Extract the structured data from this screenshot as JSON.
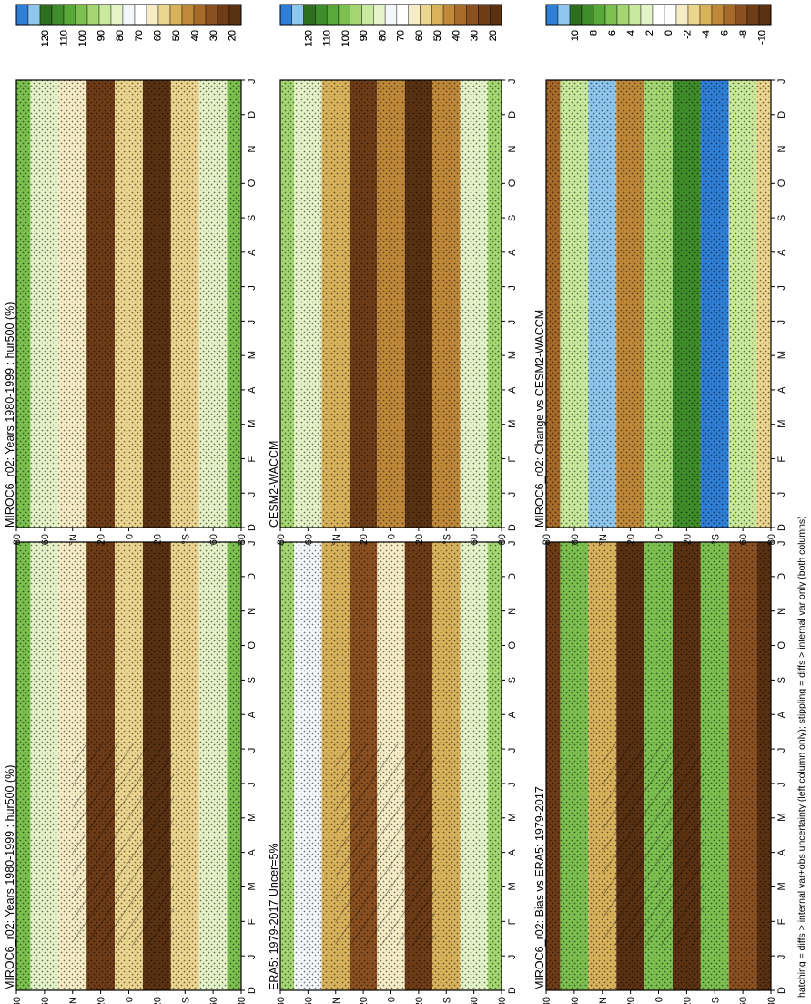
{
  "footnote": "hatching = diffs > internal var+obs uncertainty (left column only); stippling = diffs > internal var only (both columns)",
  "month_ticks": [
    "D",
    "J",
    "F",
    "M",
    "A",
    "M",
    "J",
    "J",
    "A",
    "S",
    "O",
    "N",
    "D",
    "J"
  ],
  "lat_ticks": [
    "80",
    "60",
    "°N",
    "20",
    "0",
    "20",
    "°S",
    "60",
    "80"
  ],
  "colorbars": {
    "abs": {
      "labels": [
        "120",
        "110",
        "100",
        "90",
        "80",
        "70",
        "60",
        "50",
        "40",
        "30",
        "20"
      ],
      "colors": [
        "#2f7fd6",
        "#8fc7ee",
        "#2e6e1f",
        "#3f8c2a",
        "#58a83a",
        "#7cc04f",
        "#a4d772",
        "#c9ea9c",
        "#e4f4c8",
        "#f5f8fb",
        "#ffffff",
        "#f6edc6",
        "#ebd58f",
        "#d9b25c",
        "#c0893a",
        "#a66a2a",
        "#8a5020",
        "#6e3c17",
        "#5a3212"
      ]
    },
    "diff": {
      "labels": [
        "10",
        "8",
        "6",
        "4",
        "2",
        "0",
        "-2",
        "-4",
        "-6",
        "-8",
        "-10"
      ],
      "colors": [
        "#2f7fd6",
        "#8fc7ee",
        "#2e6e1f",
        "#3f8c2a",
        "#58a83a",
        "#7cc04f",
        "#a4d772",
        "#c9ea9c",
        "#e4f4c8",
        "#ffffff",
        "#ffffff",
        "#f6edc6",
        "#ebd58f",
        "#d9b25c",
        "#c0893a",
        "#a66a2a",
        "#8a5020",
        "#6e3c17",
        "#5a3212"
      ]
    }
  },
  "chart_data": [
    {
      "type": "heatmap",
      "title": "MIROC6_r02: Years 1980-1999 : hur500 (%)",
      "x": [
        "D",
        "J",
        "F",
        "M",
        "A",
        "M",
        "J",
        "J",
        "A",
        "S",
        "O",
        "N",
        "D",
        "J"
      ],
      "y": [
        "80",
        "60",
        "°N",
        "20",
        "0",
        "20",
        "°S",
        "60",
        "80"
      ],
      "colorbar": [
        120,
        110,
        100,
        90,
        80,
        70,
        60,
        50,
        40,
        30,
        20
      ],
      "lat_bands": [
        {
          "lat": 80,
          "value": 90
        },
        {
          "lat": 60,
          "value": 75
        },
        {
          "lat": 40,
          "value": 60
        },
        {
          "lat": 20,
          "value": 30
        },
        {
          "lat": 0,
          "value": 55
        },
        {
          "lat": -20,
          "value": 25
        },
        {
          "lat": -40,
          "value": 55
        },
        {
          "lat": -60,
          "value": 75
        },
        {
          "lat": -80,
          "value": 90
        }
      ],
      "hatching": true,
      "stippling": true
    },
    {
      "type": "heatmap",
      "title": "MIROC6_r02: Years 1980-1999 : hur500 (%)",
      "x": [
        "D",
        "J",
        "F",
        "M",
        "A",
        "M",
        "J",
        "J",
        "A",
        "S",
        "O",
        "N",
        "D",
        "J"
      ],
      "y": [
        "80",
        "60",
        "°N",
        "20",
        "0",
        "20",
        "°S",
        "60",
        "80"
      ],
      "colorbar": [
        120,
        110,
        100,
        90,
        80,
        70,
        60,
        50,
        40,
        30,
        20
      ],
      "lat_bands": [
        {
          "lat": 80,
          "value": 90
        },
        {
          "lat": 60,
          "value": 75
        },
        {
          "lat": 40,
          "value": 60
        },
        {
          "lat": 20,
          "value": 30
        },
        {
          "lat": 0,
          "value": 55
        },
        {
          "lat": -20,
          "value": 25
        },
        {
          "lat": -40,
          "value": 55
        },
        {
          "lat": -60,
          "value": 75
        },
        {
          "lat": -80,
          "value": 90
        }
      ],
      "hatching": false,
      "stippling": true
    },
    {
      "type": "heatmap",
      "title": "ERA5: 1979-2017 Uncer=5%",
      "x": [
        "D",
        "J",
        "F",
        "M",
        "A",
        "M",
        "J",
        "J",
        "A",
        "S",
        "O",
        "N",
        "D",
        "J"
      ],
      "y": [
        "80",
        "60",
        "°N",
        "20",
        "0",
        "20",
        "°S",
        "60",
        "80"
      ],
      "colorbar": [
        120,
        110,
        100,
        90,
        80,
        70,
        60,
        50,
        40,
        30,
        20
      ],
      "lat_bands": [
        {
          "lat": 80,
          "value": 85
        },
        {
          "lat": 60,
          "value": 70
        },
        {
          "lat": 40,
          "value": 50
        },
        {
          "lat": 20,
          "value": 35
        },
        {
          "lat": 0,
          "value": 60
        },
        {
          "lat": -20,
          "value": 30
        },
        {
          "lat": -40,
          "value": 50
        },
        {
          "lat": -60,
          "value": 75
        },
        {
          "lat": -80,
          "value": 85
        }
      ],
      "hatching": true,
      "stippling": true
    },
    {
      "type": "heatmap",
      "title": "CESM2-WACCM",
      "x": [
        "D",
        "J",
        "F",
        "M",
        "A",
        "M",
        "J",
        "J",
        "A",
        "S",
        "O",
        "N",
        "D",
        "J"
      ],
      "y": [
        "80",
        "60",
        "°N",
        "20",
        "0",
        "20",
        "°S",
        "60",
        "80"
      ],
      "colorbar": [
        120,
        110,
        100,
        90,
        80,
        70,
        60,
        50,
        40,
        30,
        20
      ],
      "lat_bands": [
        {
          "lat": 80,
          "value": 85
        },
        {
          "lat": 60,
          "value": 75
        },
        {
          "lat": 40,
          "value": 50
        },
        {
          "lat": 20,
          "value": 30
        },
        {
          "lat": 0,
          "value": 45
        },
        {
          "lat": -20,
          "value": 25
        },
        {
          "lat": -40,
          "value": 45
        },
        {
          "lat": -60,
          "value": 75
        },
        {
          "lat": -80,
          "value": 85
        }
      ],
      "hatching": false,
      "stippling": true
    },
    {
      "type": "heatmap",
      "title": "MIROC6_r02: Bias vs ERA5: 1979-2017",
      "x": [
        "D",
        "J",
        "F",
        "M",
        "A",
        "M",
        "J",
        "J",
        "A",
        "S",
        "O",
        "N",
        "D",
        "J"
      ],
      "y": [
        "80",
        "60",
        "°N",
        "20",
        "0",
        "20",
        "°S",
        "60",
        "80"
      ],
      "colorbar": [
        10,
        8,
        6,
        4,
        2,
        0,
        -2,
        -4,
        -6,
        -8,
        -10
      ],
      "lat_bands": [
        {
          "lat": 80,
          "value": -8
        },
        {
          "lat": 60,
          "value": 4
        },
        {
          "lat": 40,
          "value": -4
        },
        {
          "lat": 20,
          "value": -10
        },
        {
          "lat": 0,
          "value": 4
        },
        {
          "lat": -20,
          "value": -9
        },
        {
          "lat": -40,
          "value": 4
        },
        {
          "lat": -60,
          "value": -7
        },
        {
          "lat": -80,
          "value": -10
        }
      ],
      "hatching": true,
      "stippling": true
    },
    {
      "type": "heatmap",
      "title": "MIROC6_r02: Change vs CESM2-WACCM",
      "x": [
        "D",
        "J",
        "F",
        "M",
        "A",
        "M",
        "J",
        "J",
        "A",
        "S",
        "O",
        "N",
        "D",
        "J"
      ],
      "y": [
        "80",
        "60",
        "°N",
        "20",
        "0",
        "20",
        "°S",
        "60",
        "80"
      ],
      "colorbar": [
        10,
        8,
        6,
        4,
        2,
        0,
        -2,
        -4,
        -6,
        -8,
        -10
      ],
      "lat_bands": [
        {
          "lat": 80,
          "value": -6
        },
        {
          "lat": 60,
          "value": 2
        },
        {
          "lat": 40,
          "value": 8
        },
        {
          "lat": 20,
          "value": -5
        },
        {
          "lat": 0,
          "value": 3
        },
        {
          "lat": -20,
          "value": 6
        },
        {
          "lat": -40,
          "value": 9
        },
        {
          "lat": -60,
          "value": 2
        },
        {
          "lat": -80,
          "value": -3
        }
      ],
      "hatching": false,
      "stippling": true
    }
  ]
}
